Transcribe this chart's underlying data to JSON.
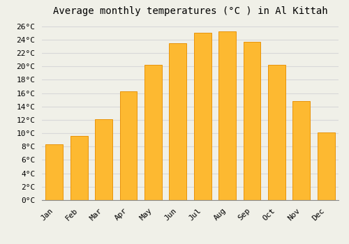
{
  "title": "Average monthly temperatures (°C ) in Al Kittah",
  "months": [
    "Jan",
    "Feb",
    "Mar",
    "Apr",
    "May",
    "Jun",
    "Jul",
    "Aug",
    "Sep",
    "Oct",
    "Nov",
    "Dec"
  ],
  "values": [
    8.3,
    9.6,
    12.1,
    16.3,
    20.2,
    23.5,
    25.0,
    25.2,
    23.7,
    20.2,
    14.8,
    10.1
  ],
  "bar_color": "#FDB931",
  "bar_edge_color": "#E8940A",
  "background_color": "#F0F0E8",
  "grid_color": "#D8D8D8",
  "ylim": [
    0,
    27
  ],
  "ytick_step": 2,
  "title_fontsize": 10,
  "tick_fontsize": 8,
  "font_family": "monospace"
}
